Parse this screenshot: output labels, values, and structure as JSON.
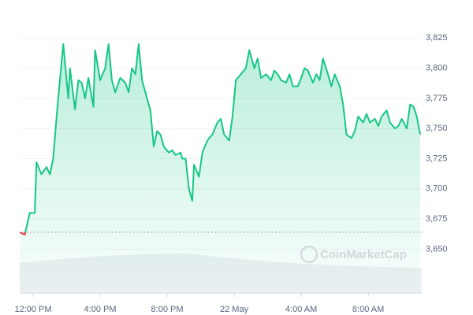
{
  "chart_data": {
    "type": "line",
    "watermark": "CoinMarketCap",
    "color": "#16c784",
    "negative_color": "#ea3943",
    "reference_line": 3664,
    "xlim": [
      -0.8,
      23.1
    ],
    "xticks": [
      {
        "value": 0,
        "label": "12:00 PM"
      },
      {
        "value": 4,
        "label": "4:00 PM"
      },
      {
        "value": 8,
        "label": "8:00 PM"
      },
      {
        "value": 12,
        "label": "22 May"
      },
      {
        "value": 16,
        "label": "4:00 AM"
      },
      {
        "value": 20,
        "label": "8:00 AM"
      }
    ],
    "ylim": [
      3615,
      3850
    ],
    "yticks": [
      {
        "value": 3650,
        "label": "3,650"
      },
      {
        "value": 3675,
        "label": "3,675"
      },
      {
        "value": 3700,
        "label": "3,700"
      },
      {
        "value": 3725,
        "label": "3,725"
      },
      {
        "value": 3750,
        "label": "3,750"
      },
      {
        "value": 3775,
        "label": "3,775"
      },
      {
        "value": 3800,
        "label": "3,800"
      },
      {
        "value": 3825,
        "label": "3,825"
      }
    ],
    "grid": true,
    "x": [
      -0.8,
      -0.5,
      -0.2,
      0.1,
      0.2,
      0.5,
      0.8,
      1.0,
      1.2,
      1.4,
      1.6,
      1.8,
      2.1,
      2.2,
      2.5,
      2.7,
      2.9,
      3.1,
      3.3,
      3.6,
      3.7,
      4.0,
      4.3,
      4.5,
      4.7,
      4.9,
      5.2,
      5.5,
      5.7,
      5.9,
      6.1,
      6.3,
      6.5,
      6.7,
      7.0,
      7.2,
      7.4,
      7.6,
      7.8,
      8.1,
      8.3,
      8.5,
      8.8,
      8.9,
      9.1,
      9.3,
      9.5,
      9.6,
      9.9,
      10.1,
      10.4,
      10.5,
      10.7,
      11.0,
      11.2,
      11.4,
      11.7,
      11.9,
      12.1,
      12.4,
      12.7,
      12.9,
      13.2,
      13.4,
      13.6,
      13.9,
      14.2,
      14.4,
      14.6,
      14.8,
      15.1,
      15.3,
      15.5,
      15.8,
      16.0,
      16.2,
      16.4,
      16.7,
      16.9,
      17.1,
      17.3,
      17.6,
      17.8,
      18.0,
      18.3,
      18.5,
      18.7,
      19.0,
      19.2,
      19.4,
      19.7,
      19.9,
      20.1,
      20.4,
      20.6,
      20.8,
      21.1,
      21.3,
      21.6,
      21.8,
      22.0,
      22.3,
      22.5,
      22.7,
      22.9,
      23.1
    ],
    "values": [
      3664,
      3662,
      3680,
      3680,
      3722,
      3712,
      3718,
      3712,
      3725,
      3760,
      3790,
      3820,
      3775,
      3800,
      3766,
      3790,
      3788,
      3775,
      3792,
      3768,
      3815,
      3790,
      3800,
      3820,
      3790,
      3780,
      3792,
      3788,
      3780,
      3800,
      3795,
      3820,
      3790,
      3780,
      3765,
      3735,
      3748,
      3745,
      3735,
      3730,
      3732,
      3728,
      3730,
      3725,
      3725,
      3700,
      3690,
      3720,
      3710,
      3730,
      3740,
      3742,
      3745,
      3755,
      3758,
      3745,
      3740,
      3760,
      3790,
      3795,
      3800,
      3815,
      3800,
      3808,
      3792,
      3795,
      3790,
      3798,
      3795,
      3790,
      3788,
      3795,
      3785,
      3785,
      3792,
      3800,
      3798,
      3788,
      3795,
      3790,
      3808,
      3795,
      3785,
      3795,
      3785,
      3770,
      3745,
      3742,
      3748,
      3760,
      3755,
      3762,
      3755,
      3758,
      3752,
      3760,
      3765,
      3755,
      3750,
      3752,
      3758,
      3750,
      3770,
      3768,
      3760,
      3745
    ]
  }
}
